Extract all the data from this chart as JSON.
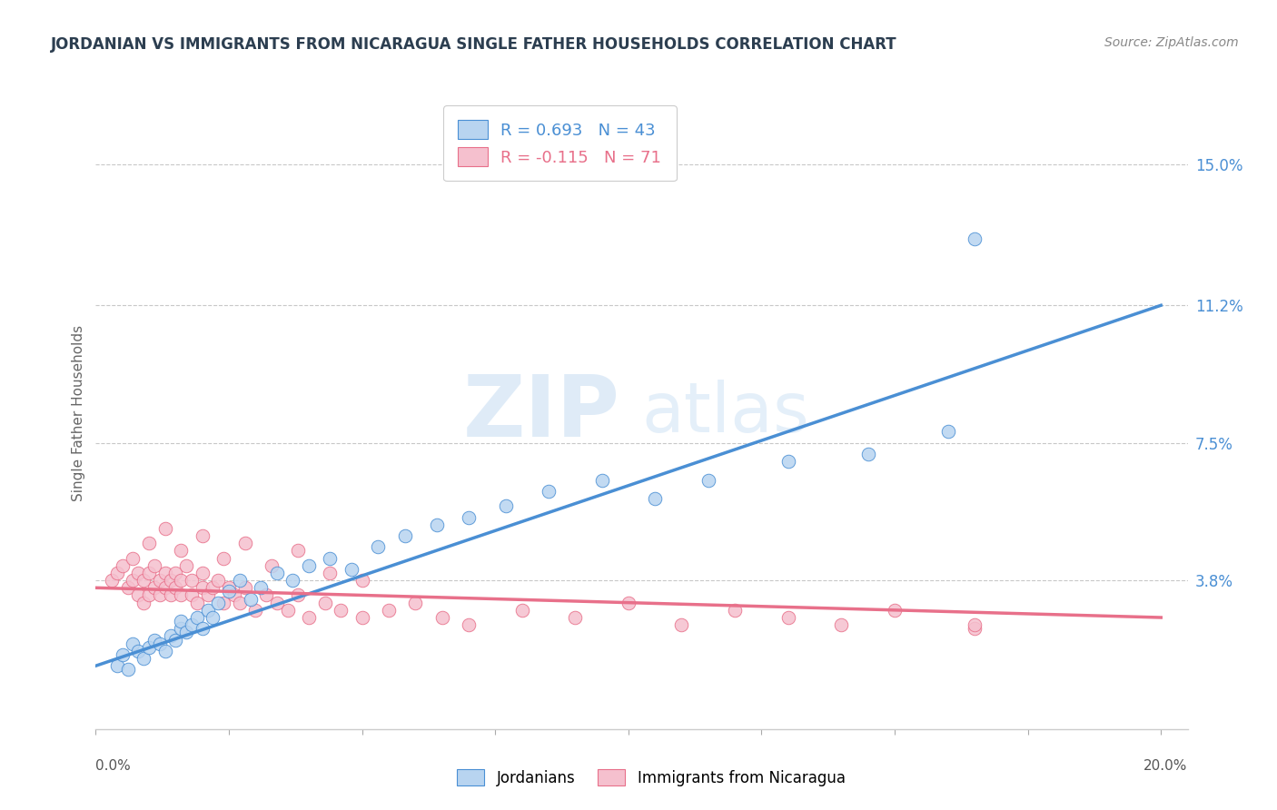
{
  "title": "JORDANIAN VS IMMIGRANTS FROM NICARAGUA SINGLE FATHER HOUSEHOLDS CORRELATION CHART",
  "source": "Source: ZipAtlas.com",
  "ylabel": "Single Father Households",
  "xlim": [
    0.0,
    0.205
  ],
  "ylim": [
    -0.002,
    0.168
  ],
  "blue_R": "0.693",
  "blue_N": "43",
  "pink_R": "-0.115",
  "pink_N": "71",
  "blue_color": "#B8D4F0",
  "pink_color": "#F5C0CE",
  "blue_line_color": "#4A8FD4",
  "pink_line_color": "#E8708A",
  "legend_blue_label": "Jordanians",
  "legend_pink_label": "Immigrants from Nicaragua",
  "ytick_positions": [
    0.038,
    0.075,
    0.112,
    0.15
  ],
  "ytick_labels": [
    "3.8%",
    "7.5%",
    "11.2%",
    "15.0%"
  ],
  "xtick_positions": [
    0.0,
    0.025,
    0.05,
    0.075,
    0.1,
    0.125,
    0.15,
    0.175,
    0.2
  ],
  "blue_line_x0": 0.0,
  "blue_line_y0": 0.015,
  "blue_line_x1": 0.2,
  "blue_line_y1": 0.112,
  "pink_line_x0": 0.0,
  "pink_line_y0": 0.036,
  "pink_line_x1": 0.2,
  "pink_line_y1": 0.028,
  "blue_x": [
    0.004,
    0.005,
    0.006,
    0.007,
    0.008,
    0.009,
    0.01,
    0.011,
    0.012,
    0.013,
    0.014,
    0.015,
    0.016,
    0.016,
    0.017,
    0.018,
    0.019,
    0.02,
    0.021,
    0.022,
    0.023,
    0.025,
    0.027,
    0.029,
    0.031,
    0.034,
    0.037,
    0.04,
    0.044,
    0.048,
    0.053,
    0.058,
    0.064,
    0.07,
    0.077,
    0.085,
    0.095,
    0.105,
    0.115,
    0.13,
    0.145,
    0.16,
    0.165
  ],
  "blue_y": [
    0.015,
    0.018,
    0.014,
    0.021,
    0.019,
    0.017,
    0.02,
    0.022,
    0.021,
    0.019,
    0.023,
    0.022,
    0.025,
    0.027,
    0.024,
    0.026,
    0.028,
    0.025,
    0.03,
    0.028,
    0.032,
    0.035,
    0.038,
    0.033,
    0.036,
    0.04,
    0.038,
    0.042,
    0.044,
    0.041,
    0.047,
    0.05,
    0.053,
    0.055,
    0.058,
    0.062,
    0.065,
    0.06,
    0.065,
    0.07,
    0.072,
    0.078,
    0.13
  ],
  "pink_x": [
    0.003,
    0.004,
    0.005,
    0.006,
    0.007,
    0.007,
    0.008,
    0.008,
    0.009,
    0.009,
    0.01,
    0.01,
    0.011,
    0.011,
    0.012,
    0.012,
    0.013,
    0.013,
    0.014,
    0.014,
    0.015,
    0.015,
    0.016,
    0.016,
    0.017,
    0.018,
    0.018,
    0.019,
    0.02,
    0.02,
    0.021,
    0.022,
    0.023,
    0.024,
    0.025,
    0.026,
    0.027,
    0.028,
    0.03,
    0.032,
    0.034,
    0.036,
    0.038,
    0.04,
    0.043,
    0.046,
    0.05,
    0.055,
    0.06,
    0.065,
    0.07,
    0.08,
    0.09,
    0.1,
    0.11,
    0.12,
    0.13,
    0.14,
    0.15,
    0.165,
    0.01,
    0.013,
    0.016,
    0.02,
    0.024,
    0.028,
    0.033,
    0.038,
    0.044,
    0.05,
    0.165
  ],
  "pink_y": [
    0.038,
    0.04,
    0.042,
    0.036,
    0.038,
    0.044,
    0.034,
    0.04,
    0.032,
    0.038,
    0.034,
    0.04,
    0.036,
    0.042,
    0.034,
    0.038,
    0.036,
    0.04,
    0.034,
    0.038,
    0.036,
    0.04,
    0.034,
    0.038,
    0.042,
    0.034,
    0.038,
    0.032,
    0.036,
    0.04,
    0.034,
    0.036,
    0.038,
    0.032,
    0.036,
    0.034,
    0.032,
    0.036,
    0.03,
    0.034,
    0.032,
    0.03,
    0.034,
    0.028,
    0.032,
    0.03,
    0.028,
    0.03,
    0.032,
    0.028,
    0.026,
    0.03,
    0.028,
    0.032,
    0.026,
    0.03,
    0.028,
    0.026,
    0.03,
    0.025,
    0.048,
    0.052,
    0.046,
    0.05,
    0.044,
    0.048,
    0.042,
    0.046,
    0.04,
    0.038,
    0.026
  ]
}
